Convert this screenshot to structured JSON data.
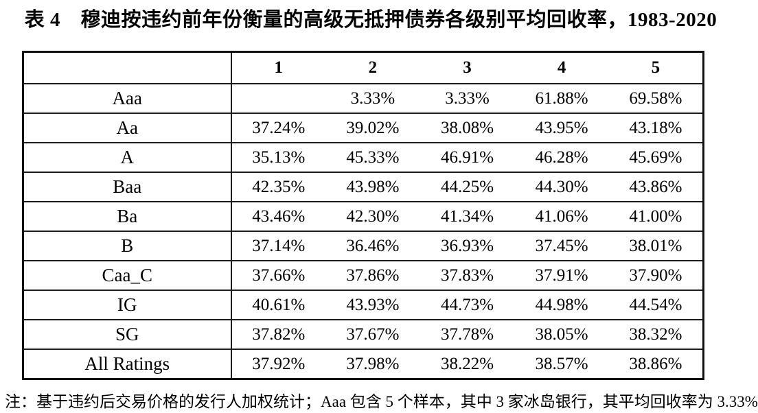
{
  "title": "表 4　穆迪按违约前年份衡量的高级无抵押债券各级别平均回收率，1983-2020",
  "note": "注：基于违约后交易价格的发行人加权统计；Aaa 包含 5 个样本，其中 3 家冰岛银行，其平均回收率为 3.33%",
  "colors": {
    "background": "#ffffff",
    "text": "#000000",
    "border": "#1c1c1c"
  },
  "table": {
    "columns": [
      "",
      "1",
      "2",
      "3",
      "4",
      "5"
    ],
    "rows": [
      {
        "label": "Aaa",
        "values": [
          "",
          "3.33%",
          "3.33%",
          "61.88%",
          "69.58%"
        ]
      },
      {
        "label": "Aa",
        "values": [
          "37.24%",
          "39.02%",
          "38.08%",
          "43.95%",
          "43.18%"
        ]
      },
      {
        "label": "A",
        "values": [
          "35.13%",
          "45.33%",
          "46.91%",
          "46.28%",
          "45.69%"
        ]
      },
      {
        "label": "Baa",
        "values": [
          "42.35%",
          "43.98%",
          "44.25%",
          "44.30%",
          "43.86%"
        ]
      },
      {
        "label": "Ba",
        "values": [
          "43.46%",
          "42.30%",
          "41.34%",
          "41.06%",
          "41.00%"
        ]
      },
      {
        "label": "B",
        "values": [
          "37.14%",
          "36.46%",
          "36.93%",
          "37.45%",
          "38.01%"
        ]
      },
      {
        "label": "Caa_C",
        "values": [
          "37.66%",
          "37.86%",
          "37.83%",
          "37.91%",
          "37.90%"
        ]
      },
      {
        "label": "IG",
        "values": [
          "40.61%",
          "43.93%",
          "44.73%",
          "44.98%",
          "44.54%"
        ]
      },
      {
        "label": "SG",
        "values": [
          "37.82%",
          "37.67%",
          "37.78%",
          "38.05%",
          "38.32%"
        ]
      },
      {
        "label": "All Ratings",
        "values": [
          "37.92%",
          "37.98%",
          "38.22%",
          "38.57%",
          "38.86%"
        ]
      }
    ]
  },
  "chart_data": {
    "type": "table",
    "title": "表 4　穆迪按违约前年份衡量的高级无抵押债券各级别平均回收率，1983-2020",
    "note": "注：基于违约后交易价格的发行人加权统计；Aaa 包含 5 个样本，其中 3 家冰岛银行，其平均回收率为 3.33%",
    "columns": [
      "1",
      "2",
      "3",
      "4",
      "5"
    ],
    "categories": [
      "Aaa",
      "Aa",
      "A",
      "Baa",
      "Ba",
      "B",
      "Caa_C",
      "IG",
      "SG",
      "All Ratings"
    ],
    "series": [
      {
        "name": "Aaa",
        "values": [
          null,
          3.33,
          3.33,
          61.88,
          69.58
        ]
      },
      {
        "name": "Aa",
        "values": [
          37.24,
          39.02,
          38.08,
          43.95,
          43.18
        ]
      },
      {
        "name": "A",
        "values": [
          35.13,
          45.33,
          46.91,
          46.28,
          45.69
        ]
      },
      {
        "name": "Baa",
        "values": [
          42.35,
          43.98,
          44.25,
          44.3,
          43.86
        ]
      },
      {
        "name": "Ba",
        "values": [
          43.46,
          42.3,
          41.34,
          41.06,
          41.0
        ]
      },
      {
        "name": "B",
        "values": [
          37.14,
          36.46,
          36.93,
          37.45,
          38.01
        ]
      },
      {
        "name": "Caa_C",
        "values": [
          37.66,
          37.86,
          37.83,
          37.91,
          37.9
        ]
      },
      {
        "name": "IG",
        "values": [
          40.61,
          43.93,
          44.73,
          44.98,
          44.54
        ]
      },
      {
        "name": "SG",
        "values": [
          37.82,
          37.67,
          37.78,
          38.05,
          38.32
        ]
      },
      {
        "name": "All Ratings",
        "values": [
          37.92,
          37.98,
          38.22,
          38.57,
          38.86
        ]
      }
    ],
    "unit": "%"
  }
}
